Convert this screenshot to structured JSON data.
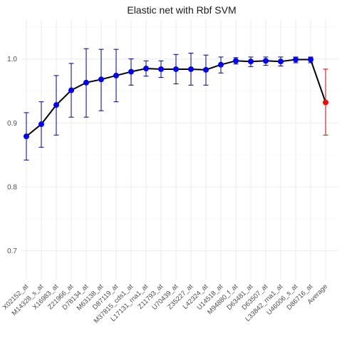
{
  "chart_data": {
    "type": "line",
    "title": "Elastic net  with Rbf SVM",
    "xlabel": "",
    "ylabel": "",
    "ylim": [
      0.655,
      1.062
    ],
    "y_ticks": [
      0.7,
      0.8,
      0.9,
      1.0
    ],
    "y_tick_labels": [
      "0.7",
      "0.8",
      "0.9",
      "1.0"
    ],
    "grid": true,
    "legend": "none",
    "categories": [
      "X02152_at",
      "M14328_s_at",
      "X16983_at",
      "Z21966_at",
      "D78134_at",
      "M63138_at",
      "D87119_at",
      "M37815_cds1_at",
      "L17131_rna1_at",
      "Z11793_at",
      "U70439_at",
      "Z35227_at",
      "L42324_at",
      "U14518_at",
      "M94880_f_at",
      "D63481_at",
      "D63507_at",
      "L33842_rna1_at",
      "U46006_s_at",
      "D86716_at",
      "Average"
    ],
    "values": [
      0.879,
      0.898,
      0.928,
      0.951,
      0.963,
      0.968,
      0.974,
      0.98,
      0.985,
      0.984,
      0.984,
      0.984,
      0.983,
      0.991,
      0.997,
      0.996,
      0.997,
      0.996,
      0.999,
      0.999,
      0.932
    ],
    "error_lower": [
      0.842,
      0.862,
      0.881,
      0.909,
      0.909,
      0.919,
      0.933,
      0.959,
      0.973,
      0.971,
      0.961,
      0.959,
      0.959,
      0.978,
      0.992,
      0.988,
      0.99,
      0.989,
      0.994,
      0.994,
      0.881
    ],
    "error_upper": [
      0.916,
      0.933,
      0.974,
      0.993,
      1.016,
      1.015,
      1.015,
      1.0,
      0.997,
      0.997,
      1.007,
      1.009,
      1.006,
      1.003,
      1.002,
      1.003,
      1.003,
      1.003,
      1.003,
      1.003,
      0.984
    ],
    "colors": {
      "line": "#000000",
      "point": "#0000ff",
      "errorbar": "#00008b",
      "average_point": "#ff0000",
      "average_errorbar": "#cc0000",
      "grid_major": "#ebebeb",
      "grid_minor": "#f5f5f5"
    }
  }
}
